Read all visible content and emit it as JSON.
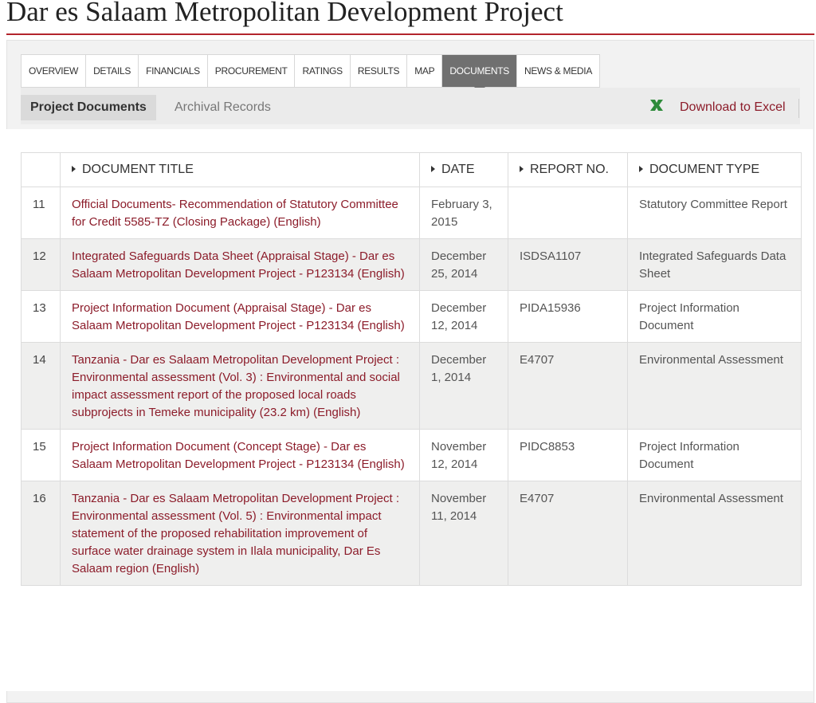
{
  "page": {
    "title": "Dar es Salaam Metropolitan Development Project"
  },
  "tabs": [
    {
      "label": "OVERVIEW",
      "active": false
    },
    {
      "label": "DETAILS",
      "active": false
    },
    {
      "label": "FINANCIALS",
      "active": false
    },
    {
      "label": "PROCUREMENT",
      "active": false
    },
    {
      "label": "RATINGS",
      "active": false
    },
    {
      "label": "RESULTS",
      "active": false
    },
    {
      "label": "MAP",
      "active": false
    },
    {
      "label": "DOCUMENTS",
      "active": true
    },
    {
      "label": "NEWS & MEDIA",
      "active": false
    }
  ],
  "subtabs": {
    "project_documents": "Project Documents",
    "archival_records": "Archival Records"
  },
  "download": {
    "label": "Download to Excel",
    "icon": "excel-icon",
    "icon_color": "#2e8b3a"
  },
  "table": {
    "headers": {
      "number": "",
      "document_title": "DOCUMENT TITLE",
      "date": "DATE",
      "report_no": "REPORT NO.",
      "document_type": "DOCUMENT TYPE"
    },
    "rows": [
      {
        "num": "11",
        "title": "Official Documents- Recommendation of Statutory Committee for Credit 5585-TZ (Closing Package) (English)",
        "date": "February 3, 2015",
        "report": "",
        "type": "Statutory Committee Report"
      },
      {
        "num": "12",
        "title": "Integrated Safeguards Data Sheet (Appraisal Stage) - Dar es Salaam Metropolitan Development Project - P123134 (English)",
        "date": "December 25, 2014",
        "report": "ISDSA1107",
        "type": "Integrated Safeguards Data Sheet"
      },
      {
        "num": "13",
        "title": "Project Information Document (Appraisal Stage) - Dar es Salaam Metropolitan Development Project - P123134 (English)",
        "date": "December 12, 2014",
        "report": "PIDA15936",
        "type": "Project Information Document"
      },
      {
        "num": "14",
        "title": "Tanzania - Dar es Salaam Metropolitan Development Project : Environmental assessment (Vol. 3) : Environmental and social impact assessment report of the proposed local roads subprojects in Temeke municipality (23.2 km) (English)",
        "date": "December 1, 2014",
        "report": "E4707",
        "type": "Environmental Assessment"
      },
      {
        "num": "15",
        "title": "Project Information Document (Concept Stage) - Dar es Salaam Metropolitan Development Project - P123134 (English)",
        "date": "November 12, 2014",
        "report": "PIDC8853",
        "type": "Project Information Document"
      },
      {
        "num": "16",
        "title": "Tanzania - Dar es Salaam Metropolitan Development Project : Environmental assessment (Vol. 5) : Environmental impact statement of the proposed rehabilitation improvement of surface water drainage system in Ilala municipality, Dar Es Salaam region (English)",
        "date": "November 11, 2014",
        "report": "E4707",
        "type": "Environmental Assessment"
      }
    ]
  },
  "colors": {
    "accent": "#b3242c",
    "link": "#8c1c2a",
    "active_tab": "#707070"
  }
}
